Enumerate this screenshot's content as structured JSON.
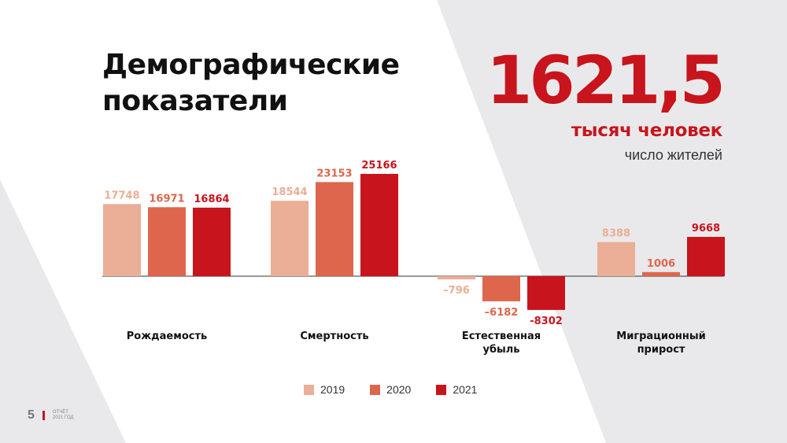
{
  "title_line1": "Демографические",
  "title_line2": "показатели",
  "highlight": {
    "value": "1621,5",
    "unit": "тысяч человек",
    "caption": "число жителей"
  },
  "footer": {
    "page_number": "5",
    "line1": "ОТЧЁТ",
    "line2": "2021 ГОД"
  },
  "colors": {
    "accent": "#c8141c",
    "s2019": "#ebae97",
    "s2020": "#dd664d",
    "s2021": "#c8141c"
  },
  "chart_data": {
    "type": "bar",
    "categories": [
      [
        "Рождаемость"
      ],
      [
        "Смертность"
      ],
      [
        "Естественная",
        "убыль"
      ],
      [
        "Миграционный",
        "прирост"
      ]
    ],
    "series": [
      {
        "name": "2019",
        "values": [
          17748,
          18544,
          -796,
          8388
        ],
        "labels": [
          "17748",
          "18544",
          "–796",
          "8388"
        ]
      },
      {
        "name": "2020",
        "values": [
          16971,
          23153,
          -6182,
          1006
        ],
        "labels": [
          "16971",
          "23153",
          "–6182",
          "1006"
        ]
      },
      {
        "name": "2021",
        "values": [
          16864,
          25166,
          -8302,
          9668
        ],
        "labels": [
          "16864",
          "25166",
          "-8302",
          "9668"
        ]
      }
    ],
    "legend_position": "bottom-center",
    "grid": false
  }
}
